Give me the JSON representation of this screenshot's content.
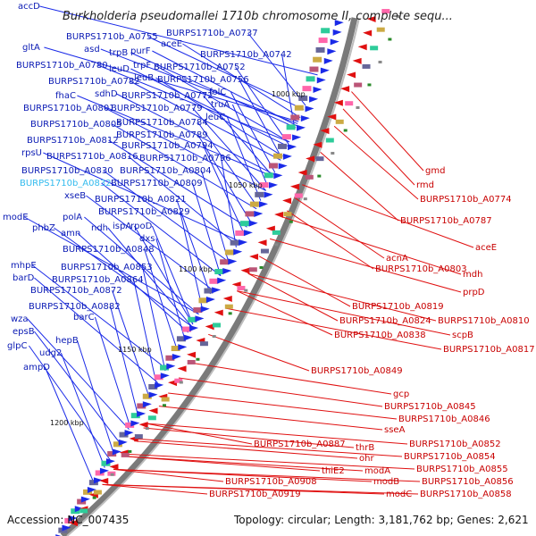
{
  "title": "Burkholderia pseudomallei 1710b chromosome II, complete sequ...",
  "corner_label": "accD",
  "accession": "Accession: NC_007435",
  "summary": "Topology: circular; Length: 3,181,762 bp; Genes: 2,621",
  "ticks": [
    "1000 kbp",
    "1050 kbp",
    "1100 kbp",
    "1150 kbp",
    "1200 kbp"
  ],
  "blue_labels": [
    "BURPS1710b_A0755",
    "BURPS1710b_A0737",
    "aceE",
    "asd",
    "purF",
    "BURPS1710b_A0742",
    "gltA",
    "trpB",
    "trpF",
    "BURPS1710b_A0752",
    "BURPS1710b_A0780",
    "leuD",
    "leuB",
    "BURPS1710b_A0756",
    "BURPS1710b_A0782",
    "sdhD",
    "folC",
    "fhaC",
    "BURPS1710b_A0772",
    "truA",
    "BURPS1710b_A0801",
    "BURPS1710b_A0779",
    "leuC",
    "BURPS1710b_A0805",
    "BURPS1710b_A0784",
    "BURPS1710b_A0789",
    "BURPS1710b_A0812",
    "BURPS1710b_A0794",
    "rpsU",
    "BURPS1710b_A0816",
    "BURPS1710b_A0796",
    "BURPS1710b_A0830",
    "BURPS1710b_A0804",
    "BURPS1710b_A0809",
    "xseB",
    "BURPS1710b_A0821",
    "BURPS1710b_A0829",
    "modE",
    "polA",
    "phbZ",
    "ndh",
    "ispA",
    "rpoD",
    "amn",
    "dxs",
    "BURPS1710b_A0848",
    "mhpE",
    "BURPS1710b_A0853",
    "barD",
    "BURPS1710b_A0864",
    "BURPS1710b_A0872",
    "BURPS1710b_A0882",
    "wza",
    "barC",
    "epsB",
    "hepB",
    "glpC",
    "udg2",
    "ampD"
  ],
  "highlight_label": "BURPS1710b_A0832",
  "red_labels": [
    "gmd",
    "rmd",
    "BURPS1710b_A0774",
    "BURPS1710b_A0787",
    "aceE",
    "acnA",
    "BURPS1710b_A0803",
    "mdh",
    "prpD",
    "BURPS1710b_A0819",
    "BURPS1710b_A0824",
    "BURPS1710b_A0810",
    "BURPS1710b_A0838",
    "scpB",
    "BURPS1710b_A0817",
    "BURPS1710b_A0849",
    "gcp",
    "BURPS1710b_A0845",
    "BURPS1710b_A0846",
    "sseA",
    "BURPS1710b_A0852",
    "thrB",
    "BURPS1710b_A0887",
    "ohr",
    "BURPS1710b_A0854",
    "thiE2",
    "modA",
    "BURPS1710b_A0855",
    "modB",
    "BURPS1710b_A0856",
    "BURPS1710b_A0908",
    "modC",
    "BURPS1710b_A0858",
    "BURPS1710b_A0919"
  ],
  "colors": {
    "forward_strand": "#1a2ae8",
    "reverse_strand": "#e01010",
    "backbone": "#808080",
    "highlight": "#33bbee"
  }
}
